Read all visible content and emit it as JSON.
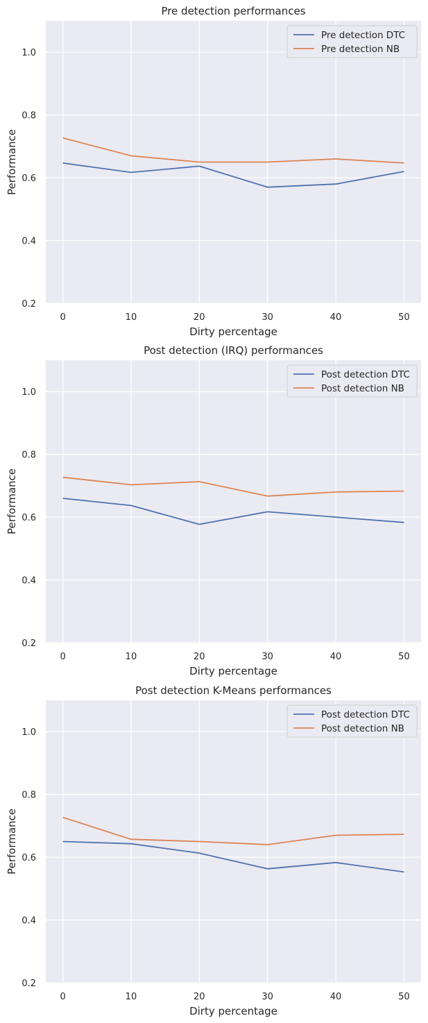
{
  "chart_data": [
    {
      "type": "line",
      "title": "Pre detection performances",
      "xlabel": "Dirty percentage",
      "ylabel": "Performance",
      "x": [
        0,
        10,
        20,
        30,
        40,
        50
      ],
      "xticks": [
        "0",
        "10",
        "20",
        "30",
        "40",
        "50"
      ],
      "yticks": [
        "0.2",
        "0.4",
        "0.6",
        "0.8",
        "1.0"
      ],
      "xlim": [
        -2.5,
        52.5
      ],
      "ylim": [
        0.2,
        1.1
      ],
      "grid": true,
      "legend_position": "top-right",
      "series": [
        {
          "name": "Pre detection DTC",
          "color": "#4c72b0",
          "values": [
            0.647,
            0.617,
            0.637,
            0.57,
            0.58,
            0.62
          ]
        },
        {
          "name": "Pre detection NB",
          "color": "#dd8452",
          "values": [
            0.727,
            0.67,
            0.65,
            0.65,
            0.66,
            0.647
          ]
        }
      ]
    },
    {
      "type": "line",
      "title": "Post detection (IRQ) performances",
      "xlabel": "Dirty percentage",
      "ylabel": "Performance",
      "x": [
        0,
        10,
        20,
        30,
        40,
        50
      ],
      "xticks": [
        "0",
        "10",
        "20",
        "30",
        "40",
        "50"
      ],
      "yticks": [
        "0.2",
        "0.4",
        "0.6",
        "0.8",
        "1.0"
      ],
      "xlim": [
        -2.5,
        52.5
      ],
      "ylim": [
        0.2,
        1.1
      ],
      "grid": true,
      "legend_position": "top-right",
      "series": [
        {
          "name": "Post detection DTC",
          "color": "#4c72b0",
          "values": [
            0.66,
            0.637,
            0.577,
            0.617,
            0.6,
            0.583
          ]
        },
        {
          "name": "Post detection NB",
          "color": "#dd8452",
          "values": [
            0.727,
            0.703,
            0.713,
            0.667,
            0.68,
            0.683
          ]
        }
      ]
    },
    {
      "type": "line",
      "title": "Post detection K-Means performances",
      "xlabel": "Dirty percentage",
      "ylabel": "Performance",
      "x": [
        0,
        10,
        20,
        30,
        40,
        50
      ],
      "xticks": [
        "0",
        "10",
        "20",
        "30",
        "40",
        "50"
      ],
      "yticks": [
        "0.2",
        "0.4",
        "0.6",
        "0.8",
        "1.0"
      ],
      "xlim": [
        -2.5,
        52.5
      ],
      "ylim": [
        0.2,
        1.1
      ],
      "grid": true,
      "legend_position": "top-right",
      "series": [
        {
          "name": "Post detection DTC",
          "color": "#4c72b0",
          "values": [
            0.65,
            0.643,
            0.613,
            0.563,
            0.583,
            0.553
          ]
        },
        {
          "name": "Post detection NB",
          "color": "#dd8452",
          "values": [
            0.727,
            0.657,
            0.65,
            0.64,
            0.67,
            0.673
          ]
        }
      ]
    }
  ]
}
